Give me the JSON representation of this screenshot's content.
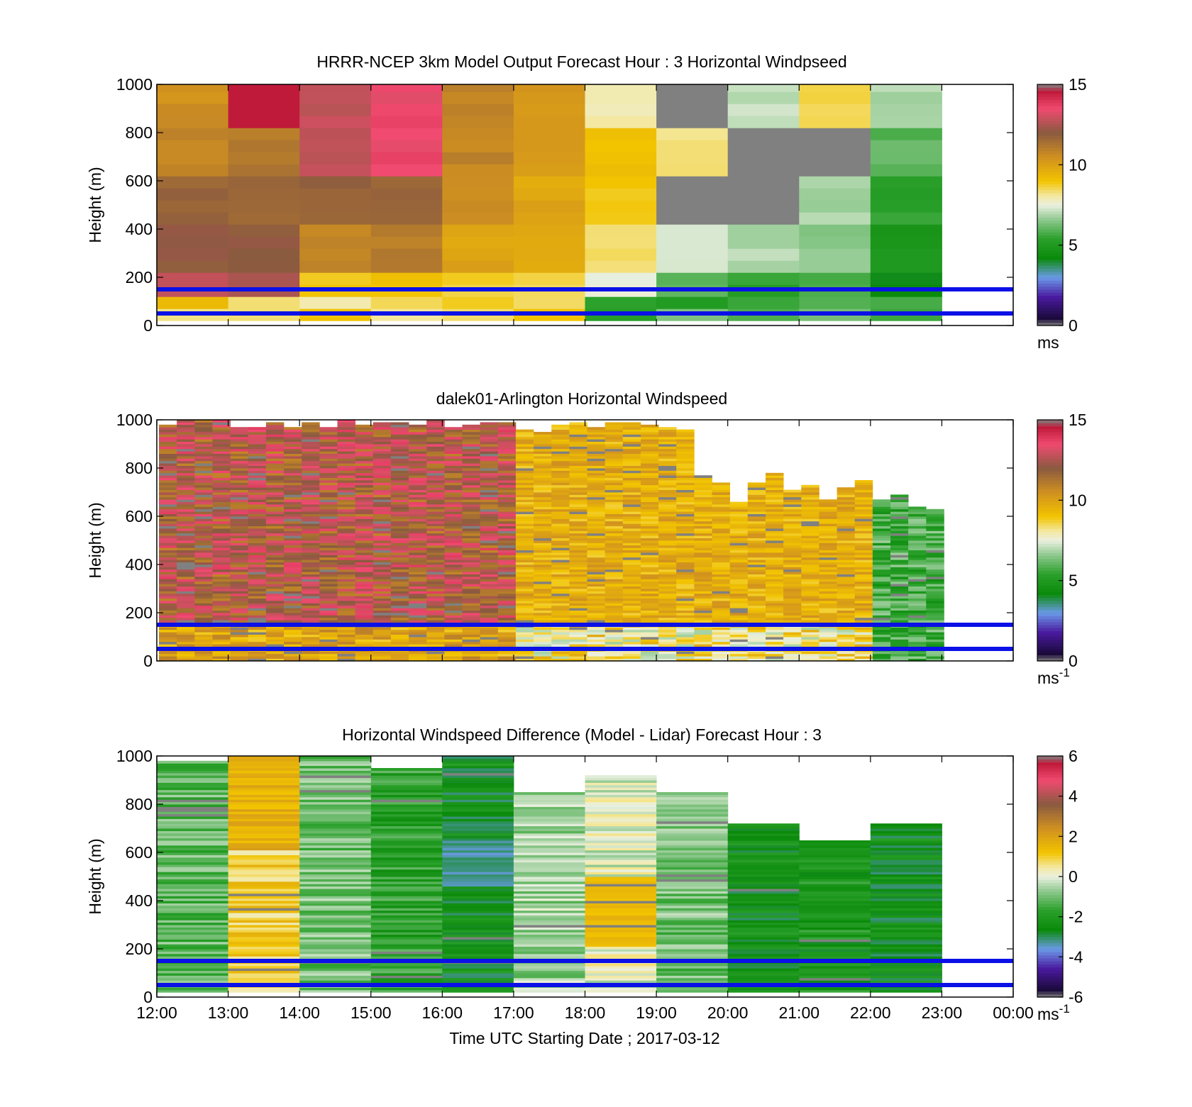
{
  "chart_data": [
    {
      "type": "heatmap",
      "title": "HRRR-NCEP 3km Model Output   Forecast Hour : 3 Horizontal Windpseed",
      "xlabel": "",
      "ylabel": "Height (m)",
      "xlim": [
        12,
        24
      ],
      "ylim": [
        0,
        1000
      ],
      "yticks": [
        0,
        200,
        400,
        600,
        800,
        1000
      ],
      "xticks": [],
      "grid": false,
      "colorbar": {
        "min": 0,
        "max": 15,
        "ticks": [
          0,
          5,
          10,
          15
        ],
        "unit": "ms",
        "unit_exp": ""
      },
      "overlay_lines_height_m": [
        150,
        50
      ],
      "overlay_color": "#0a10e6",
      "source": "model",
      "columns_utc_hours": [
        12,
        13,
        14,
        15,
        16,
        17,
        18,
        19,
        20,
        21,
        22
      ]
    },
    {
      "type": "heatmap",
      "title": "dalek01-Arlington  Horizontal Windspeed",
      "xlabel": "",
      "ylabel": "Height (m)",
      "xlim": [
        12,
        24
      ],
      "ylim": [
        0,
        1000
      ],
      "yticks": [
        0,
        200,
        400,
        600,
        800,
        1000
      ],
      "xticks": [],
      "grid": false,
      "colorbar": {
        "min": 0,
        "max": 15,
        "ticks": [
          0,
          5,
          10,
          15
        ],
        "unit": "ms",
        "unit_exp": "-1"
      },
      "overlay_lines_height_m": [
        150,
        50
      ],
      "overlay_color": "#0a10e6",
      "source": "lidar"
    },
    {
      "type": "heatmap",
      "title": "Horizontal Windspeed Difference (Model - Lidar) Forecast Hour : 3",
      "xlabel": "Time UTC  Starting Date ; 2017-03-12",
      "ylabel": "Height (m)",
      "xlim": [
        12,
        24
      ],
      "ylim": [
        0,
        1000
      ],
      "yticks": [
        0,
        200,
        400,
        600,
        800,
        1000
      ],
      "xticks": [
        "12:00",
        "13:00",
        "14:00",
        "15:00",
        "16:00",
        "17:00",
        "18:00",
        "19:00",
        "20:00",
        "21:00",
        "22:00",
        "23:00",
        "00:00"
      ],
      "grid": false,
      "colorbar": {
        "min": -6,
        "max": 6,
        "ticks": [
          -6,
          -4,
          -2,
          0,
          2,
          4,
          6
        ],
        "unit": "ms",
        "unit_exp": "-1"
      },
      "overlay_lines_height_m": [
        150,
        50
      ],
      "overlay_color": "#0a10e6",
      "source": "difference",
      "columns_utc_hours": [
        12,
        13,
        14,
        15,
        16,
        17,
        18,
        19,
        20,
        21,
        22
      ]
    }
  ],
  "colormap_stops": [
    {
      "pos": 0.0,
      "color": "#808080"
    },
    {
      "pos": 0.03,
      "color": "#1a0a3a"
    },
    {
      "pos": 0.12,
      "color": "#4a1aa0"
    },
    {
      "pos": 0.2,
      "color": "#6a9ae8"
    },
    {
      "pos": 0.28,
      "color": "#0a8a0a"
    },
    {
      "pos": 0.36,
      "color": "#2aa02a"
    },
    {
      "pos": 0.44,
      "color": "#8ec88e"
    },
    {
      "pos": 0.5,
      "color": "#eaf0e0"
    },
    {
      "pos": 0.54,
      "color": "#f4e8a0"
    },
    {
      "pos": 0.6,
      "color": "#f2c400"
    },
    {
      "pos": 0.7,
      "color": "#d09020"
    },
    {
      "pos": 0.8,
      "color": "#8a5a40"
    },
    {
      "pos": 0.9,
      "color": "#f04a70"
    },
    {
      "pos": 0.97,
      "color": "#c01a3a"
    },
    {
      "pos": 1.0,
      "color": "#808080"
    }
  ]
}
